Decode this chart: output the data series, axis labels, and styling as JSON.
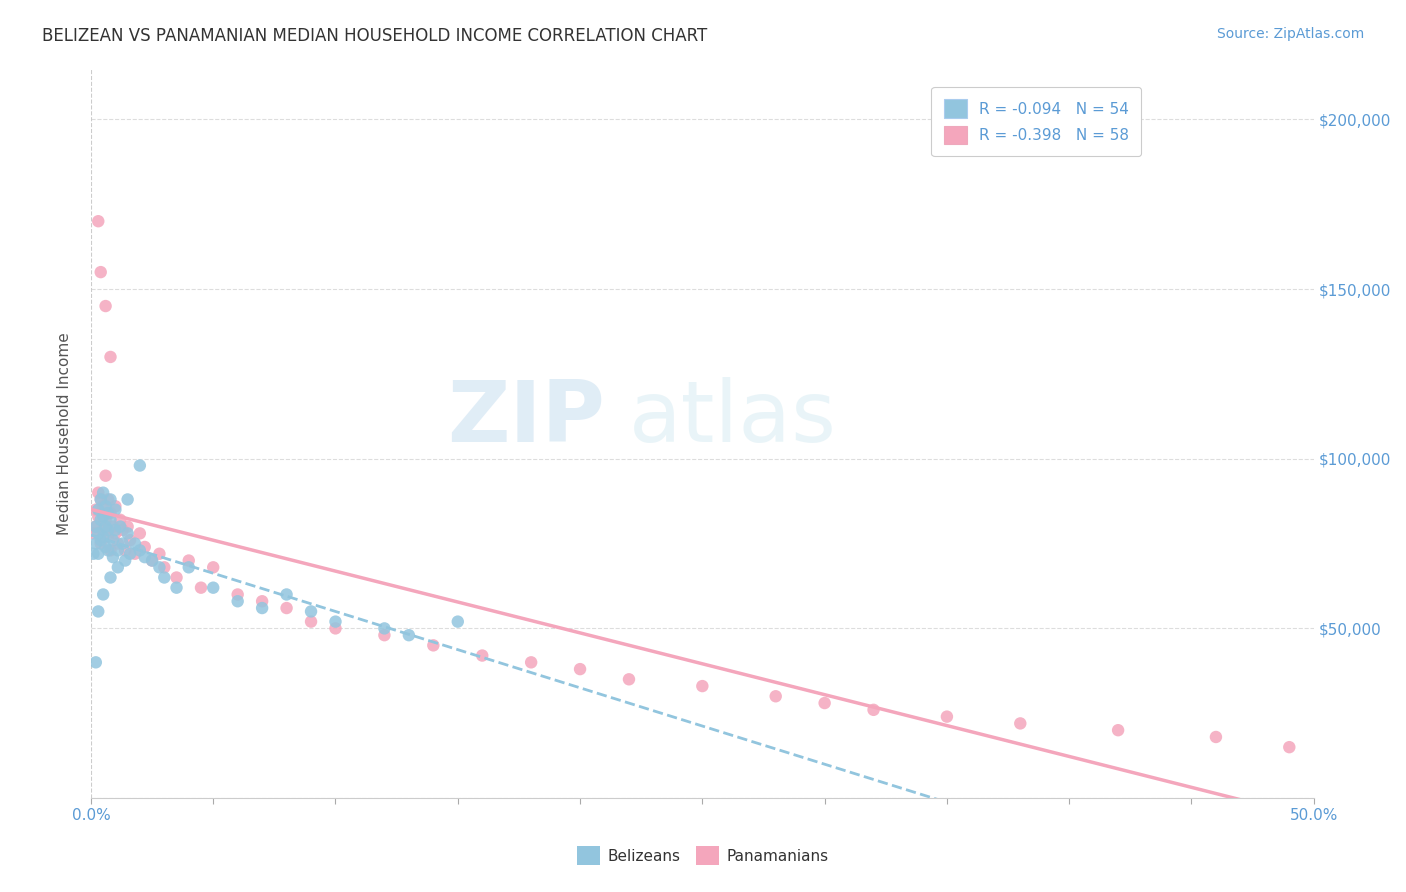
{
  "title": "BELIZEAN VS PANAMANIAN MEDIAN HOUSEHOLD INCOME CORRELATION CHART",
  "source": "Source: ZipAtlas.com",
  "ylabel": "Median Household Income",
  "xlim": [
    0.0,
    0.5
  ],
  "ylim": [
    0,
    215000
  ],
  "yticks": [
    0,
    50000,
    100000,
    150000,
    200000
  ],
  "ytick_labels": [
    "",
    "$50,000",
    "$100,000",
    "$150,000",
    "$200,000"
  ],
  "legend_label_blue": "R = -0.094   N = 54",
  "legend_label_pink": "R = -0.398   N = 58",
  "belizean_color": "#92c5de",
  "panamanian_color": "#f4a6bc",
  "watermark_zip": "ZIP",
  "watermark_atlas": "atlas",
  "background_color": "#ffffff",
  "belizeans_x": [
    0.001,
    0.002,
    0.002,
    0.003,
    0.003,
    0.003,
    0.004,
    0.004,
    0.004,
    0.005,
    0.005,
    0.005,
    0.006,
    0.006,
    0.006,
    0.007,
    0.007,
    0.007,
    0.008,
    0.008,
    0.009,
    0.009,
    0.01,
    0.01,
    0.011,
    0.011,
    0.012,
    0.013,
    0.014,
    0.015,
    0.016,
    0.018,
    0.02,
    0.022,
    0.025,
    0.028,
    0.03,
    0.035,
    0.04,
    0.05,
    0.06,
    0.07,
    0.08,
    0.09,
    0.1,
    0.12,
    0.13,
    0.15,
    0.02,
    0.015,
    0.008,
    0.005,
    0.003,
    0.002
  ],
  "belizeans_y": [
    72000,
    80000,
    75000,
    85000,
    78000,
    72000,
    88000,
    82000,
    76000,
    90000,
    83000,
    77000,
    86000,
    80000,
    74000,
    84000,
    79000,
    73000,
    88000,
    82000,
    76000,
    71000,
    85000,
    79000,
    73000,
    68000,
    80000,
    75000,
    70000,
    78000,
    72000,
    75000,
    73000,
    71000,
    70000,
    68000,
    65000,
    62000,
    68000,
    62000,
    58000,
    56000,
    60000,
    55000,
    52000,
    50000,
    48000,
    52000,
    98000,
    88000,
    65000,
    60000,
    55000,
    40000
  ],
  "panamanians_x": [
    0.001,
    0.002,
    0.002,
    0.003,
    0.003,
    0.004,
    0.004,
    0.005,
    0.005,
    0.006,
    0.006,
    0.007,
    0.007,
    0.008,
    0.008,
    0.009,
    0.01,
    0.01,
    0.011,
    0.012,
    0.013,
    0.014,
    0.015,
    0.016,
    0.018,
    0.02,
    0.022,
    0.025,
    0.028,
    0.03,
    0.035,
    0.04,
    0.045,
    0.05,
    0.06,
    0.07,
    0.08,
    0.09,
    0.1,
    0.12,
    0.14,
    0.16,
    0.18,
    0.2,
    0.22,
    0.25,
    0.28,
    0.3,
    0.32,
    0.35,
    0.38,
    0.42,
    0.46,
    0.49,
    0.003,
    0.004,
    0.006,
    0.008
  ],
  "panamanians_y": [
    78000,
    85000,
    80000,
    90000,
    83000,
    88000,
    75000,
    86000,
    79000,
    95000,
    82000,
    88000,
    77000,
    84000,
    73000,
    80000,
    86000,
    78000,
    75000,
    82000,
    79000,
    73000,
    80000,
    76000,
    72000,
    78000,
    74000,
    70000,
    72000,
    68000,
    65000,
    70000,
    62000,
    68000,
    60000,
    58000,
    56000,
    52000,
    50000,
    48000,
    45000,
    42000,
    40000,
    38000,
    35000,
    33000,
    30000,
    28000,
    26000,
    24000,
    22000,
    20000,
    18000,
    15000,
    170000,
    155000,
    145000,
    130000
  ]
}
